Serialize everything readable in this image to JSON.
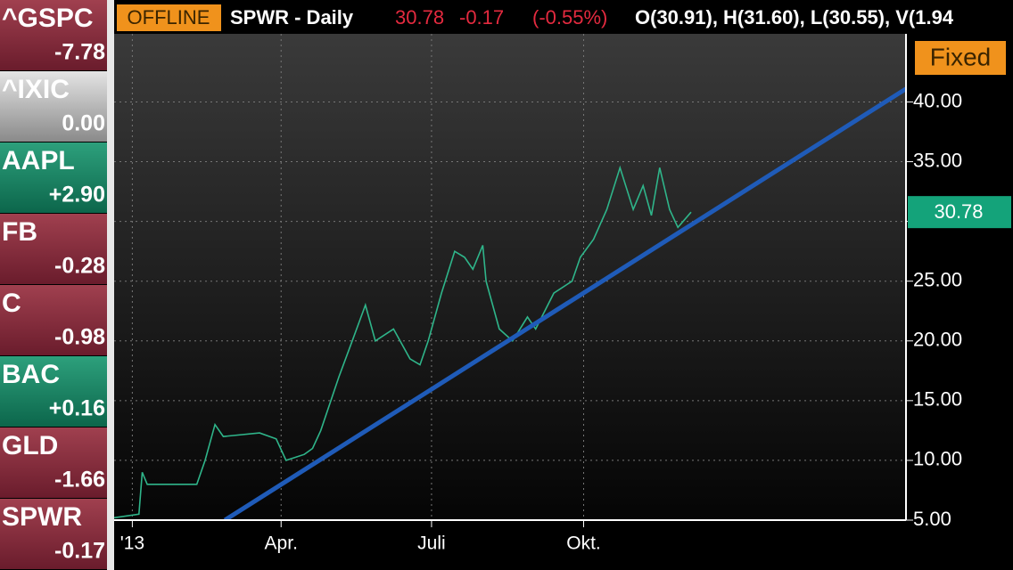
{
  "watchlist": [
    {
      "symbol": "^GSPC",
      "change": "-7.78",
      "color": "red"
    },
    {
      "symbol": "^IXIC",
      "change": "0.00",
      "color": "grey"
    },
    {
      "symbol": "AAPL",
      "change": "+2.90",
      "color": "green"
    },
    {
      "symbol": "FB",
      "change": "-0.28",
      "color": "red"
    },
    {
      "symbol": "C",
      "change": "-0.98",
      "color": "red"
    },
    {
      "symbol": "BAC",
      "change": "+0.16",
      "color": "green"
    },
    {
      "symbol": "GLD",
      "change": "-1.66",
      "color": "red"
    },
    {
      "symbol": "SPWR",
      "change": "-0.17",
      "color": "red"
    }
  ],
  "header": {
    "status": "OFFLINE",
    "title": "SPWR - Daily",
    "last": "30.78",
    "change": "-0.17",
    "change_pct": "(-0.55%)",
    "ohlc": "O(30.91), H(31.60), L(30.55), V(1.94"
  },
  "button": "Fixed",
  "chart_data": {
    "type": "line",
    "xlim": [
      -11,
      468
    ],
    "xticks": [
      {
        "value": 0,
        "label": "'13"
      },
      {
        "value": 90,
        "label": "Apr."
      },
      {
        "value": 181,
        "label": "Juli"
      },
      {
        "value": 273,
        "label": "Okt."
      }
    ],
    "ylim": [
      5,
      45.7
    ],
    "yticks": [
      {
        "value": 5,
        "label": "5.00"
      },
      {
        "value": 10,
        "label": "10.00"
      },
      {
        "value": 15,
        "label": "15.00"
      },
      {
        "value": 20,
        "label": "20.00"
      },
      {
        "value": 25,
        "label": "25.00"
      },
      {
        "value": 30,
        "label": "30.00"
      },
      {
        "value": 35,
        "label": "35.00"
      },
      {
        "value": 40,
        "label": "40.00"
      }
    ],
    "grid": true,
    "series": [
      {
        "name": "SPWR",
        "color": "#2fb58a",
        "x": [
          -11,
          4,
          6,
          9,
          39,
          44,
          50,
          55,
          77,
          87,
          93,
          104,
          109,
          114,
          125,
          133,
          141,
          147,
          158,
          168,
          174,
          179,
          187,
          195,
          201,
          206,
          212,
          214,
          222,
          230,
          239,
          244,
          255,
          266,
          271,
          279,
          287,
          295,
          303,
          309,
          314,
          319,
          325,
          330,
          338
        ],
        "values": [
          5.2,
          5.5,
          9,
          8,
          8,
          10,
          13,
          12,
          12.3,
          11.8,
          10,
          10.5,
          11,
          12.5,
          17,
          20,
          23,
          20,
          21,
          18.5,
          18,
          20,
          24,
          27.5,
          27,
          26,
          28,
          25,
          21,
          20,
          22,
          21,
          24,
          25,
          27,
          28.5,
          31,
          34.5,
          31,
          33,
          30.5,
          34.5,
          31,
          29.5,
          30.78
        ]
      }
    ],
    "trendline": {
      "color": "#1f5bb8",
      "x": [
        56,
        468
      ],
      "values": [
        5,
        41.1
      ]
    },
    "last_value": {
      "value": 30.78,
      "label": "30.78"
    }
  }
}
